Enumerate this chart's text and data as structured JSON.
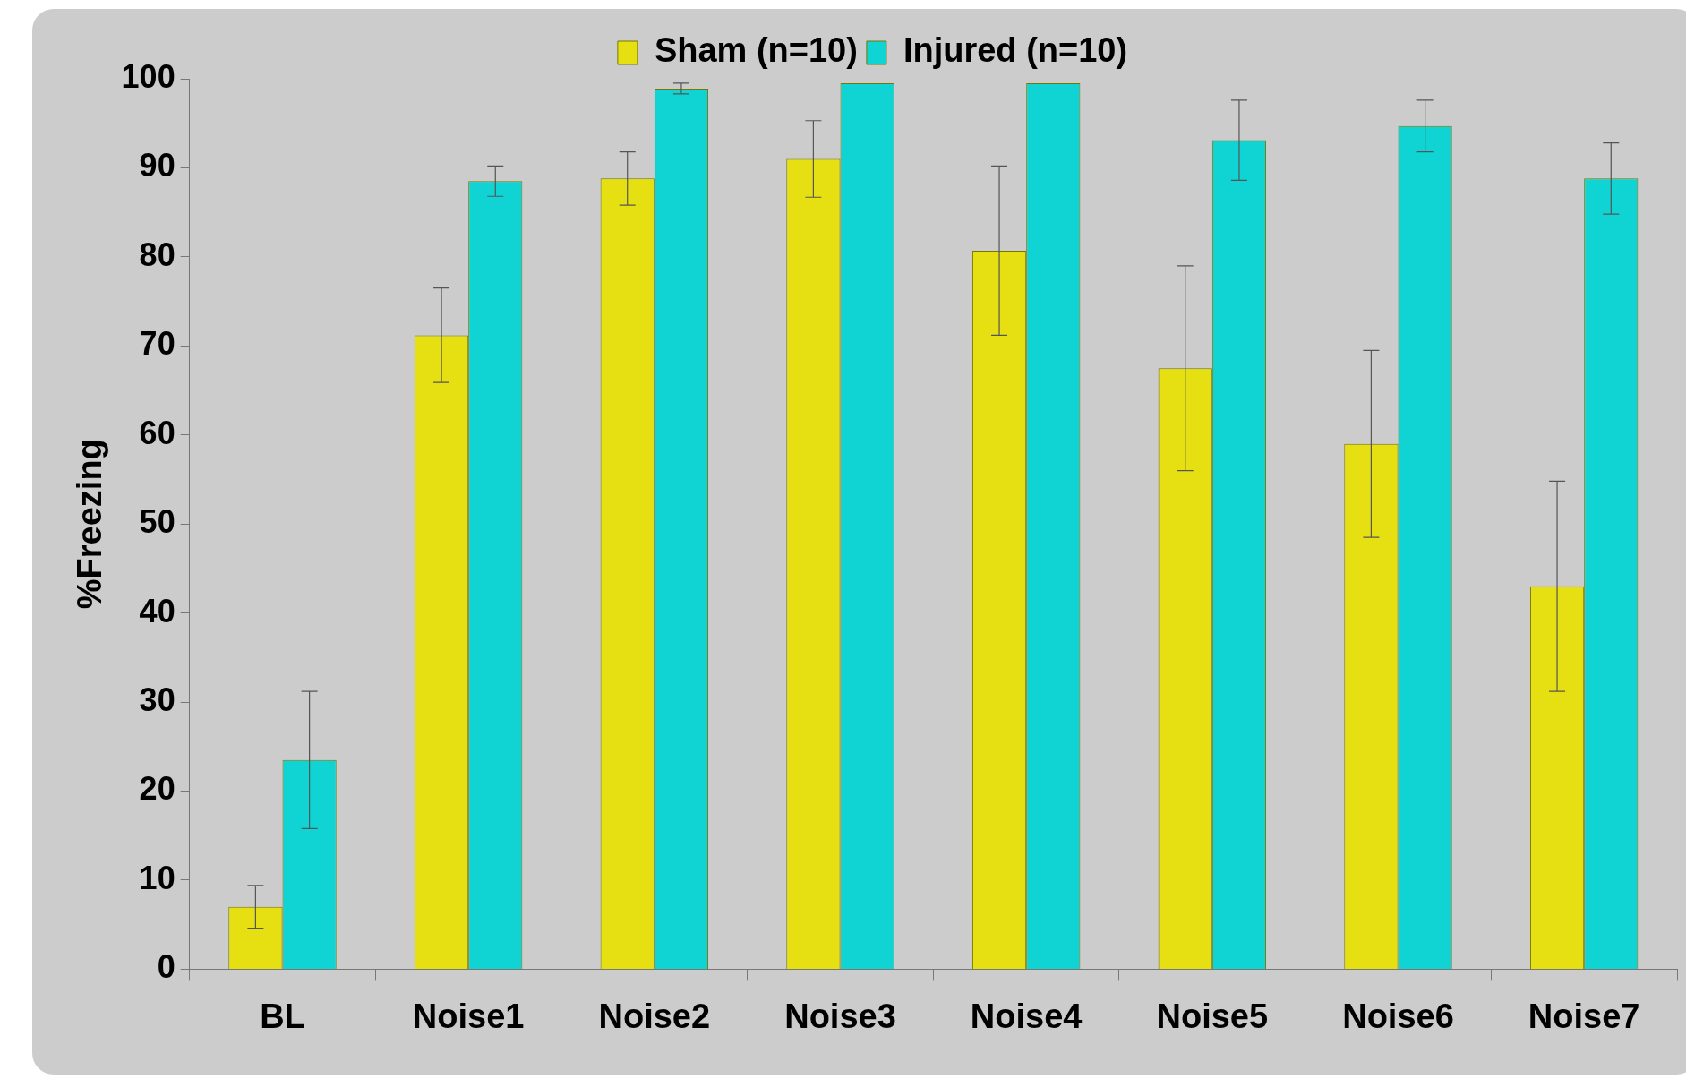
{
  "chart_data": {
    "type": "bar",
    "ylabel": "%Freezing",
    "categories": [
      "BL",
      "Noise1",
      "Noise2",
      "Noise3",
      "Noise4",
      "Noise5",
      "Noise6",
      "Noise7"
    ],
    "series": [
      {
        "name": "Sham (n=10)",
        "color": "#e6e012",
        "values": [
          7,
          71.2,
          88.8,
          91,
          80.7,
          67.5,
          59,
          43
        ],
        "errors": [
          2.4,
          5.3,
          3,
          4.3,
          9.5,
          11.5,
          10.5,
          11.8
        ]
      },
      {
        "name": "Injured (n=10)",
        "color": "#10d4d4",
        "values": [
          23.5,
          88.5,
          98.9,
          99.5,
          99.5,
          93.1,
          94.7,
          88.8
        ],
        "errors": [
          7.7,
          1.7,
          0.6,
          null,
          null,
          4.5,
          2.9,
          4
        ]
      }
    ],
    "ylim": [
      0,
      100
    ],
    "yticks": [
      0,
      10,
      20,
      30,
      40,
      50,
      60,
      70,
      80,
      90,
      100
    ],
    "grid": false,
    "legend": "top"
  }
}
